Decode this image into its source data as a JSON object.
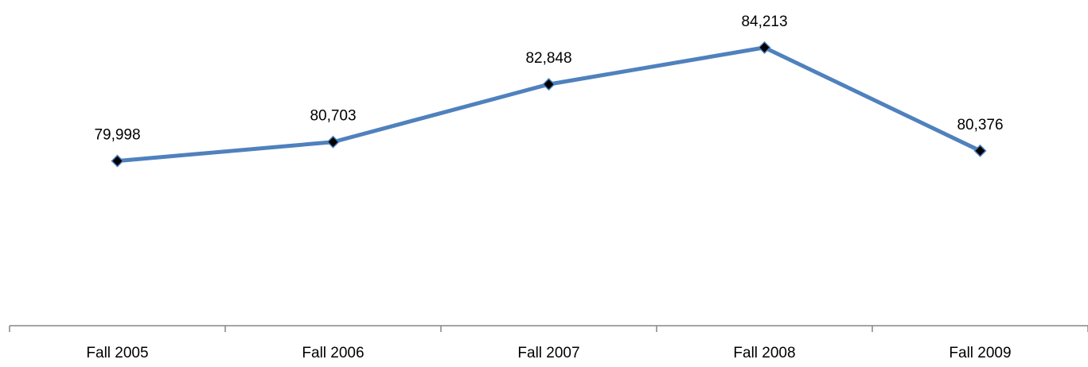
{
  "chart_data": {
    "type": "line",
    "categories": [
      "Fall 2005",
      "Fall 2006",
      "Fall 2007",
      "Fall 2008",
      "Fall 2009"
    ],
    "series": [
      {
        "values": [
          79998,
          80703,
          82848,
          84213,
          80376
        ],
        "data_labels": [
          "79,998",
          "80,703",
          "82,848",
          "84,213",
          "80,376"
        ]
      }
    ],
    "title": "",
    "xlabel": "",
    "ylabel": "",
    "y_axis_visible": false,
    "grid": false,
    "legend": "none",
    "marker": "diamond",
    "colors": {
      "line": "#4f81bd",
      "marker_fill": "#000000",
      "marker_edge": "#4f81bd",
      "axis": "#868686"
    }
  }
}
